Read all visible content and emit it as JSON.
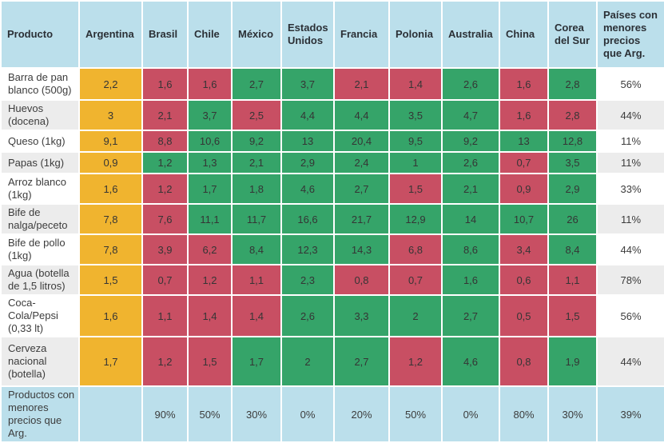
{
  "colors": {
    "header_bg": "#BBDFEB",
    "argentina_reference_bg": "#F0B42F",
    "lower_than_argentina_bg": "#C84F63",
    "higher_than_argentina_bg": "#35A469",
    "alt_row_bg": "#ECECEC",
    "text": "#3A3A3A"
  },
  "chart_data": {
    "type": "table",
    "columns": [
      "Producto",
      "Argentina",
      "Brasil",
      "Chile",
      "México",
      "Estados Unidos",
      "Francia",
      "Polonia",
      "Australia",
      "China",
      "Corea del Sur",
      "Países con menores precios que Arg."
    ],
    "cell_color_keys": {
      "arg": "argentina_reference_bg",
      "low": "lower_than_argentina_bg",
      "high": "higher_than_argentina_bg"
    },
    "rows": [
      {
        "label": "Barra de pan blanco (500g)",
        "cells": [
          {
            "v": "2,2",
            "t": "arg"
          },
          {
            "v": "1,6",
            "t": "low"
          },
          {
            "v": "1,6",
            "t": "low"
          },
          {
            "v": "2,7",
            "t": "high"
          },
          {
            "v": "3,7",
            "t": "high"
          },
          {
            "v": "2,1",
            "t": "low"
          },
          {
            "v": "1,4",
            "t": "low"
          },
          {
            "v": "2,6",
            "t": "high"
          },
          {
            "v": "1,6",
            "t": "low"
          },
          {
            "v": "2,8",
            "t": "high"
          }
        ],
        "pct": "56%"
      },
      {
        "label": "Huevos (docena)",
        "cells": [
          {
            "v": "3",
            "t": "arg"
          },
          {
            "v": "2,1",
            "t": "low"
          },
          {
            "v": "3,7",
            "t": "high"
          },
          {
            "v": "2,5",
            "t": "low"
          },
          {
            "v": "4,4",
            "t": "high"
          },
          {
            "v": "4,4",
            "t": "high"
          },
          {
            "v": "3,5",
            "t": "high"
          },
          {
            "v": "4,7",
            "t": "high"
          },
          {
            "v": "1,6",
            "t": "low"
          },
          {
            "v": "2,8",
            "t": "low"
          }
        ],
        "pct": "44%"
      },
      {
        "label": "Queso (1kg)",
        "cells": [
          {
            "v": "9,1",
            "t": "arg"
          },
          {
            "v": "8,8",
            "t": "low"
          },
          {
            "v": "10,6",
            "t": "high"
          },
          {
            "v": "9,2",
            "t": "high"
          },
          {
            "v": "13",
            "t": "high"
          },
          {
            "v": "20,4",
            "t": "high"
          },
          {
            "v": "9,5",
            "t": "high"
          },
          {
            "v": "9,2",
            "t": "high"
          },
          {
            "v": "13",
            "t": "high"
          },
          {
            "v": "12,8",
            "t": "high"
          }
        ],
        "pct": "11%"
      },
      {
        "label": "Papas (1kg)",
        "cells": [
          {
            "v": "0,9",
            "t": "arg"
          },
          {
            "v": "1,2",
            "t": "high"
          },
          {
            "v": "1,3",
            "t": "high"
          },
          {
            "v": "2,1",
            "t": "high"
          },
          {
            "v": "2,9",
            "t": "high"
          },
          {
            "v": "2,4",
            "t": "high"
          },
          {
            "v": "1",
            "t": "high"
          },
          {
            "v": "2,6",
            "t": "high"
          },
          {
            "v": "0,7",
            "t": "low"
          },
          {
            "v": "3,5",
            "t": "high"
          }
        ],
        "pct": "11%"
      },
      {
        "label": "Arroz blanco (1kg)",
        "cells": [
          {
            "v": "1,6",
            "t": "arg"
          },
          {
            "v": "1,2",
            "t": "low"
          },
          {
            "v": "1,7",
            "t": "high"
          },
          {
            "v": "1,8",
            "t": "high"
          },
          {
            "v": "4,6",
            "t": "high"
          },
          {
            "v": "2,7",
            "t": "high"
          },
          {
            "v": "1,5",
            "t": "low"
          },
          {
            "v": "2,1",
            "t": "high"
          },
          {
            "v": "0,9",
            "t": "low"
          },
          {
            "v": "2,9",
            "t": "high"
          }
        ],
        "pct": "33%"
      },
      {
        "label": "Bife de nalga/peceto",
        "cells": [
          {
            "v": "7,8",
            "t": "arg"
          },
          {
            "v": "7,6",
            "t": "low"
          },
          {
            "v": "11,1",
            "t": "high"
          },
          {
            "v": "11,7",
            "t": "high"
          },
          {
            "v": "16,6",
            "t": "high"
          },
          {
            "v": "21,7",
            "t": "high"
          },
          {
            "v": "12,9",
            "t": "high"
          },
          {
            "v": "14",
            "t": "high"
          },
          {
            "v": "10,7",
            "t": "high"
          },
          {
            "v": "26",
            "t": "high"
          }
        ],
        "pct": "11%"
      },
      {
        "label": "Bife de pollo (1kg)",
        "cells": [
          {
            "v": "7,8",
            "t": "arg"
          },
          {
            "v": "3,9",
            "t": "low"
          },
          {
            "v": "6,2",
            "t": "low"
          },
          {
            "v": "8,4",
            "t": "high"
          },
          {
            "v": "12,3",
            "t": "high"
          },
          {
            "v": "14,3",
            "t": "high"
          },
          {
            "v": "6,8",
            "t": "low"
          },
          {
            "v": "8,6",
            "t": "high"
          },
          {
            "v": "3,4",
            "t": "low"
          },
          {
            "v": "8,4",
            "t": "high"
          }
        ],
        "pct": "44%"
      },
      {
        "label": "Agua (botella de 1,5 litros)",
        "cells": [
          {
            "v": "1,5",
            "t": "arg"
          },
          {
            "v": "0,7",
            "t": "low"
          },
          {
            "v": "1,2",
            "t": "low"
          },
          {
            "v": "1,1",
            "t": "low"
          },
          {
            "v": "2,3",
            "t": "high"
          },
          {
            "v": "0,8",
            "t": "low"
          },
          {
            "v": "0,7",
            "t": "low"
          },
          {
            "v": "1,6",
            "t": "high"
          },
          {
            "v": "0,6",
            "t": "low"
          },
          {
            "v": "1,1",
            "t": "low"
          }
        ],
        "pct": "78%"
      },
      {
        "label": "Coca-Cola/Pepsi (0,33 lt)",
        "cells": [
          {
            "v": "1,6",
            "t": "arg"
          },
          {
            "v": "1,1",
            "t": "low"
          },
          {
            "v": "1,4",
            "t": "low"
          },
          {
            "v": "1,4",
            "t": "low"
          },
          {
            "v": "2,6",
            "t": "high"
          },
          {
            "v": "3,3",
            "t": "high"
          },
          {
            "v": "2",
            "t": "high"
          },
          {
            "v": "2,7",
            "t": "high"
          },
          {
            "v": "0,5",
            "t": "low"
          },
          {
            "v": "1,5",
            "t": "low"
          }
        ],
        "pct": "56%"
      },
      {
        "label": "Cerveza nacional (botella)",
        "cells": [
          {
            "v": "1,7",
            "t": "arg"
          },
          {
            "v": "1,2",
            "t": "low"
          },
          {
            "v": "1,5",
            "t": "low"
          },
          {
            "v": "1,7",
            "t": "high"
          },
          {
            "v": "2",
            "t": "high"
          },
          {
            "v": "2,7",
            "t": "high"
          },
          {
            "v": "1,2",
            "t": "low"
          },
          {
            "v": "4,6",
            "t": "high"
          },
          {
            "v": "0,8",
            "t": "low"
          },
          {
            "v": "1,9",
            "t": "high"
          }
        ],
        "pct": "44%"
      }
    ],
    "summary": {
      "label": "Productos con menores precios que Arg.",
      "values": [
        "",
        "90%",
        "50%",
        "30%",
        "0%",
        "20%",
        "50%",
        "0%",
        "80%",
        "30%"
      ],
      "total": "39%"
    }
  }
}
